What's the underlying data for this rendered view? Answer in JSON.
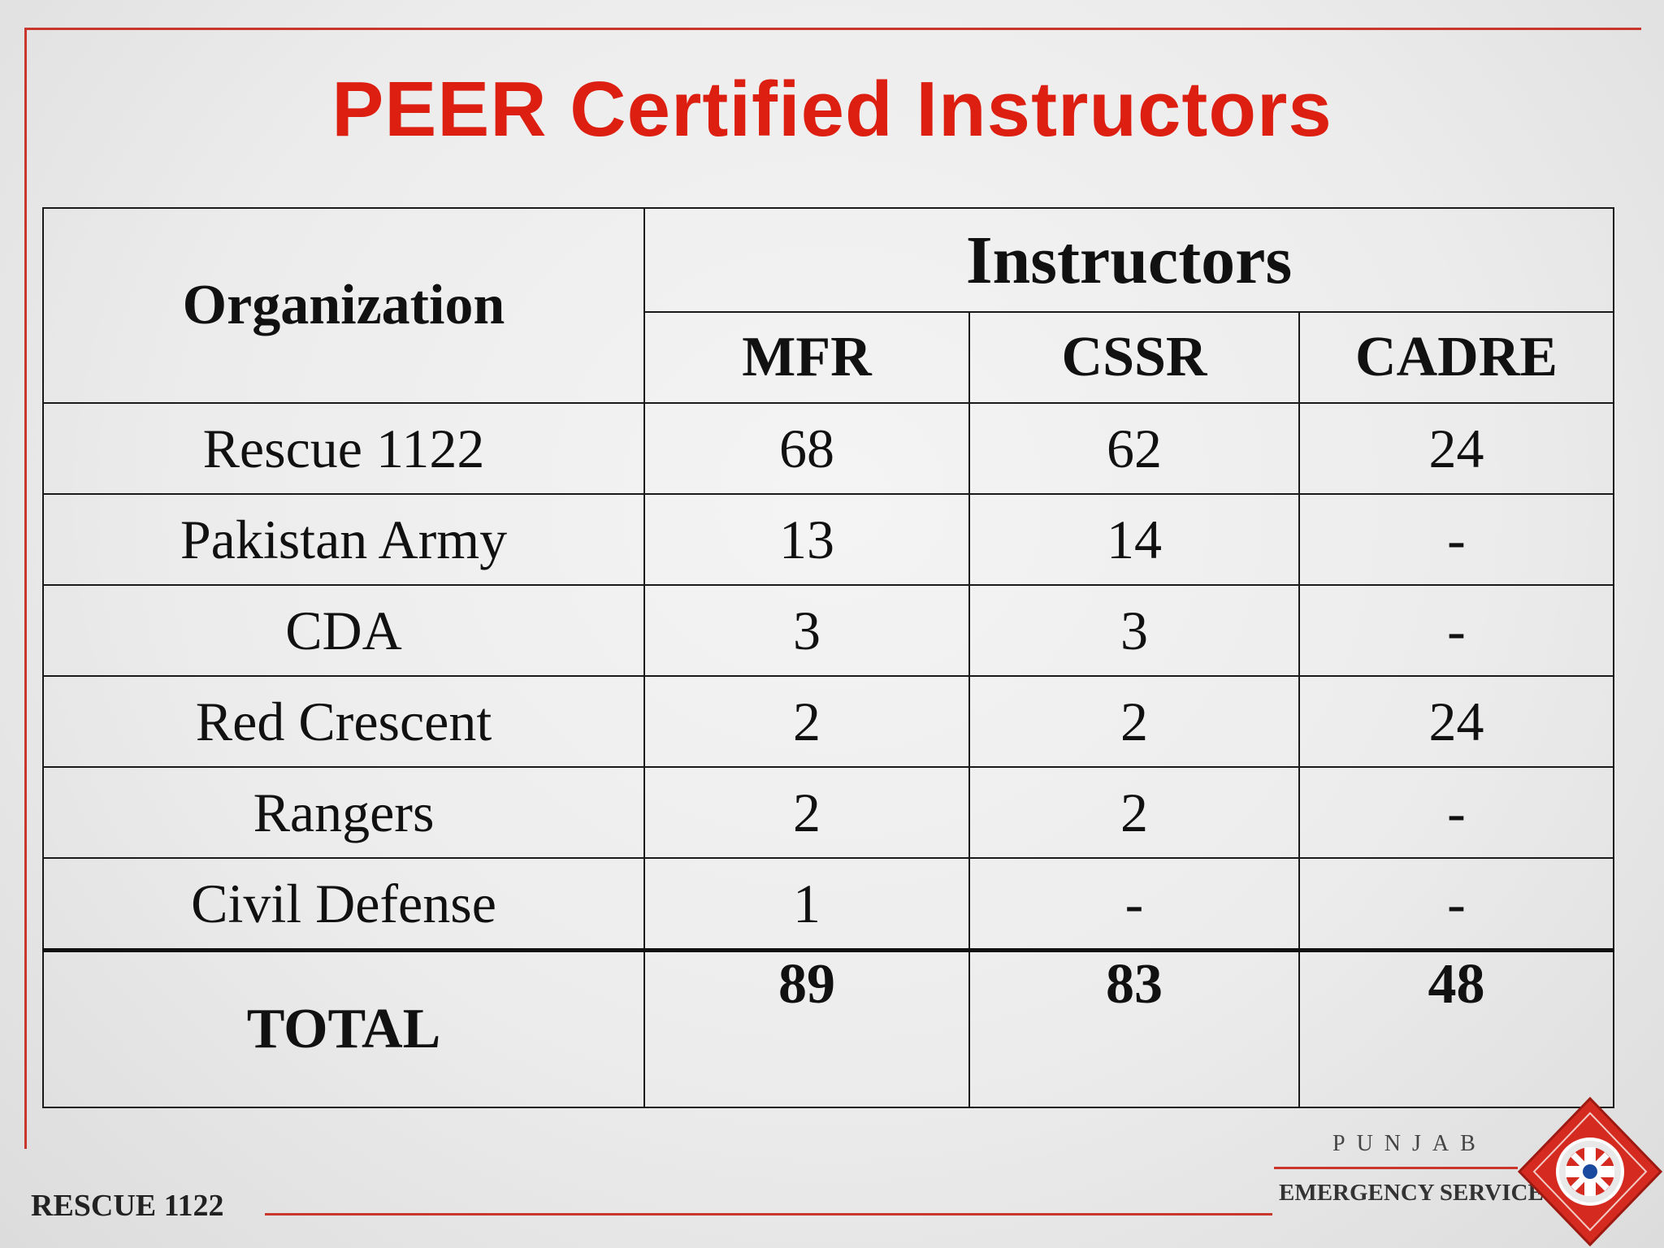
{
  "title": "PEER Certified Instructors",
  "table": {
    "org_header": "Organization",
    "group_header": "Instructors",
    "columns": [
      "MFR",
      "CSSR",
      "CADRE"
    ],
    "rows": [
      {
        "org": "Rescue 1122",
        "values": [
          "68",
          "62",
          "24"
        ]
      },
      {
        "org": "Pakistan Army",
        "values": [
          "13",
          "14",
          "-"
        ]
      },
      {
        "org": "CDA",
        "values": [
          "3",
          "3",
          "-"
        ]
      },
      {
        "org": "Red Crescent",
        "values": [
          "2",
          "2",
          "24"
        ]
      },
      {
        "org": "Rangers",
        "values": [
          "2",
          "2",
          "-"
        ]
      },
      {
        "org": "Civil Defense",
        "values": [
          "1",
          "-",
          "-"
        ]
      }
    ],
    "total": {
      "label": "TOTAL",
      "values": [
        "89",
        "83",
        "48"
      ]
    }
  },
  "footer": {
    "left_text": "RESCUE 1122",
    "logo_top": "PUNJAB",
    "logo_bottom": "EMERGENCY SERVICE"
  },
  "colors": {
    "title": "#dd1f12",
    "frame": "#c9372c",
    "emblem": "#d42a20"
  },
  "icons": {
    "emblem": "rescue-emblem-icon"
  }
}
